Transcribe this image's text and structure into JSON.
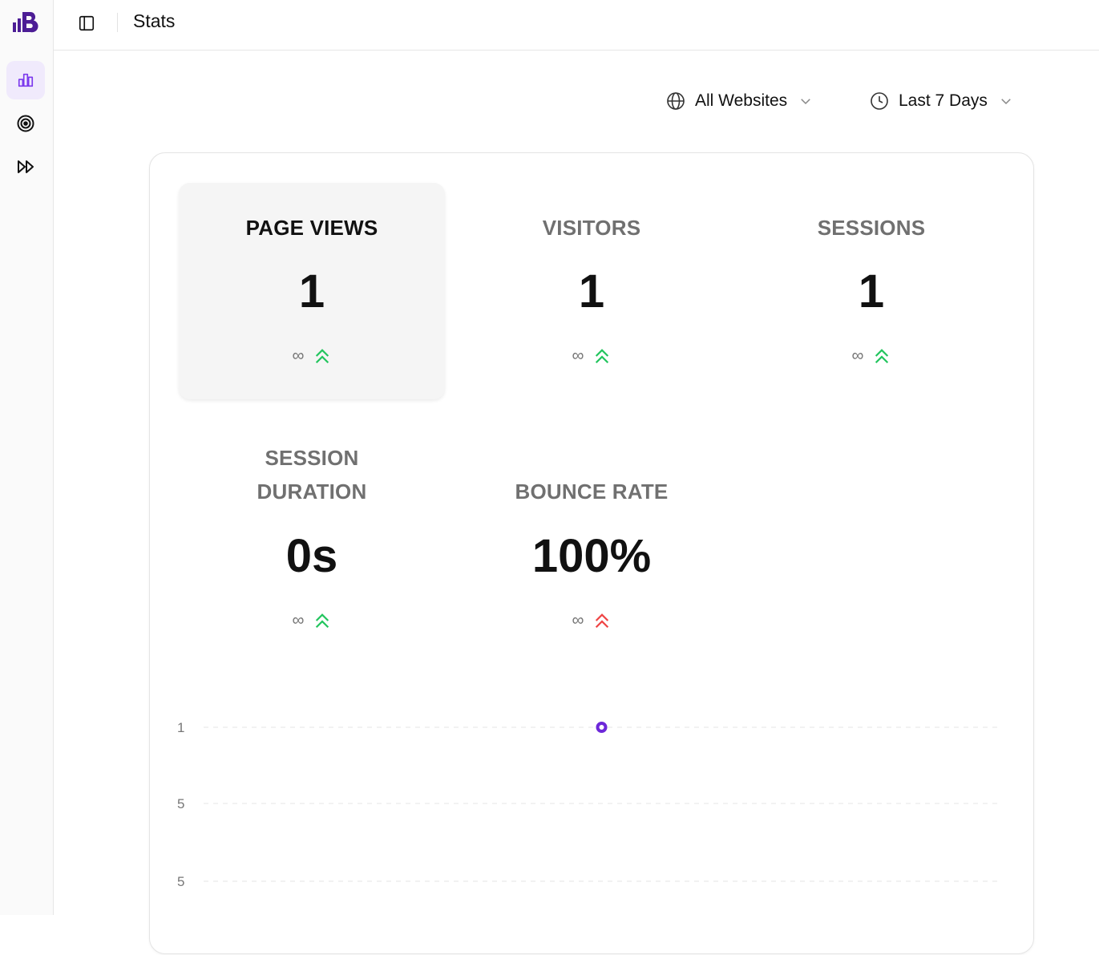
{
  "header": {
    "title": "Stats"
  },
  "sidebar": {
    "items": [
      {
        "name": "stats",
        "icon": "bar-chart-icon",
        "active": true
      },
      {
        "name": "goals",
        "icon": "target-icon",
        "active": false
      },
      {
        "name": "forward",
        "icon": "fast-forward-icon",
        "active": false
      }
    ]
  },
  "filters": {
    "website": {
      "label": "All Websites",
      "icon": "globe-icon"
    },
    "range": {
      "label": "Last 7 Days",
      "icon": "clock-icon"
    }
  },
  "stats": [
    {
      "label": "PAGE VIEWS",
      "value": "1",
      "change": "∞",
      "trend": "up",
      "good": true,
      "selected": true
    },
    {
      "label": "VISITORS",
      "value": "1",
      "change": "∞",
      "trend": "up",
      "good": true,
      "selected": false
    },
    {
      "label": "SESSIONS",
      "value": "1",
      "change": "∞",
      "trend": "up",
      "good": true,
      "selected": false
    },
    {
      "label_line1": "SESSION",
      "label_line2": "DURATION",
      "value": "0s",
      "change": "∞",
      "trend": "up",
      "good": true,
      "selected": false
    },
    {
      "label": "BOUNCE RATE",
      "value": "100%",
      "change": "∞",
      "trend": "up",
      "good": false,
      "selected": false
    }
  ],
  "colors": {
    "accent": "#6d28d9",
    "good": "#22c55e",
    "bad": "#ef4444",
    "logo": "#4c1d95"
  },
  "chart_data": {
    "type": "scatter",
    "y_tick_labels": [
      "1",
      "5",
      "5"
    ],
    "points": [
      {
        "x_index": 3,
        "x_count": 7,
        "y": 1
      }
    ],
    "ylim": [
      0,
      1
    ],
    "grid": true
  }
}
